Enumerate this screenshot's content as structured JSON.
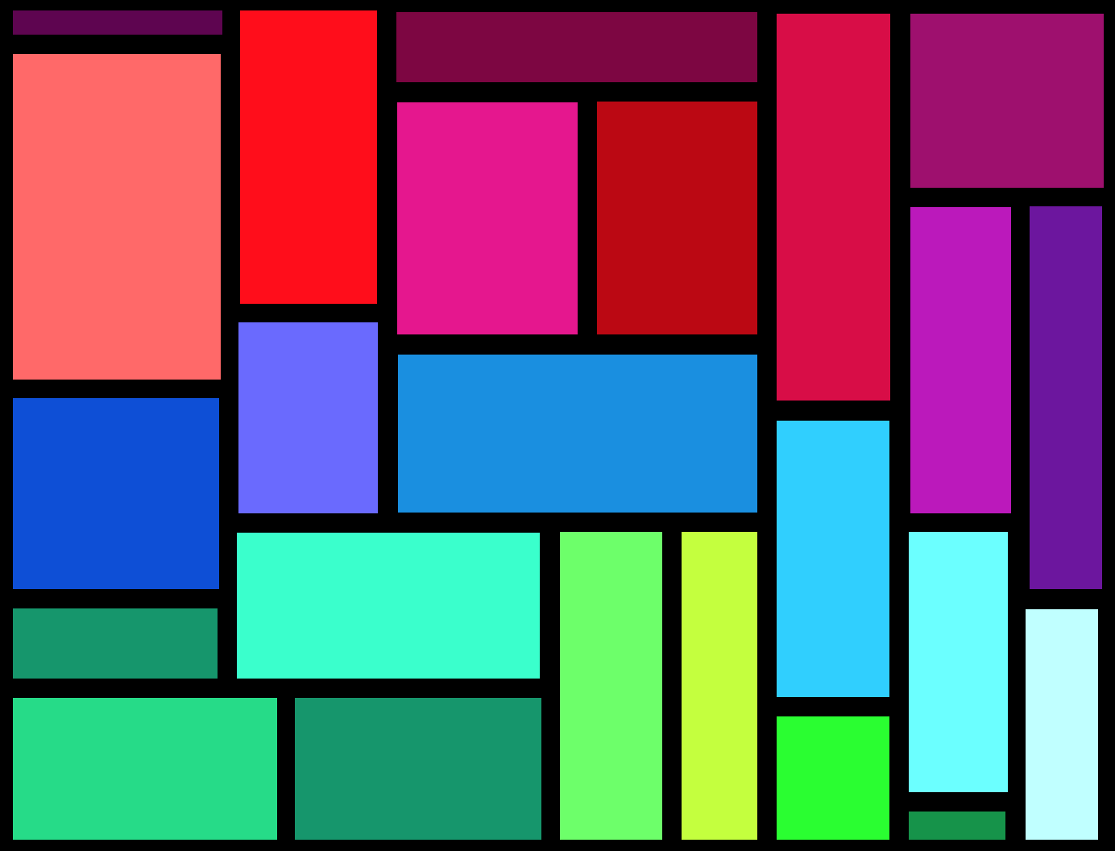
{
  "background": "#000000",
  "tiles": [
    {
      "color": "#5e0550"
    },
    {
      "color": "#ff6969"
    },
    {
      "color": "#ff0d1b"
    },
    {
      "color": "#7d0642"
    },
    {
      "color": "#e5178e"
    },
    {
      "color": "#bb0813"
    },
    {
      "color": "#d80d47"
    },
    {
      "color": "#9e106e"
    },
    {
      "color": "#bb19bb"
    },
    {
      "color": "#6c169e"
    },
    {
      "color": "#0e4fd6"
    },
    {
      "color": "#6a6afe"
    },
    {
      "color": "#1a8fe0"
    },
    {
      "color": "#30cffe"
    },
    {
      "color": "#16966c"
    },
    {
      "color": "#3affcc"
    },
    {
      "color": "#6dff6a"
    },
    {
      "color": "#c4ff3e"
    },
    {
      "color": "#6bffff"
    },
    {
      "color": "#c0ffff"
    },
    {
      "color": "#26db88"
    },
    {
      "color": "#16966c"
    },
    {
      "color": "#2afe31"
    },
    {
      "color": "#16934a"
    }
  ]
}
